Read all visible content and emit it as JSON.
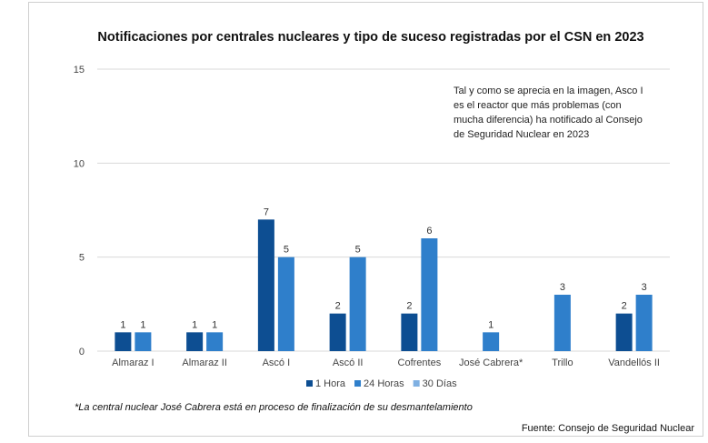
{
  "colors": {
    "1_hora": "#0d4e92",
    "24_horas": "#2f7fcb",
    "30_dias": "#7fb0e2",
    "grid": "#d9d9d9"
  },
  "chart_data": {
    "type": "bar",
    "title": "Notificaciones por centrales nucleares y tipo de suceso registradas por el CSN en 2023",
    "categories": [
      "Almaraz I",
      "Almaraz II",
      "Ascó I",
      "Ascó II",
      "Cofrentes",
      "José Cabrera*",
      "Trillo",
      "Vandellós II"
    ],
    "series": [
      {
        "name": "1 Hora",
        "values": [
          1,
          1,
          7,
          2,
          2,
          0,
          0,
          2
        ]
      },
      {
        "name": "24 Horas",
        "values": [
          1,
          1,
          5,
          5,
          6,
          1,
          3,
          3
        ]
      },
      {
        "name": "30 Días",
        "values": [
          0,
          0,
          0,
          0,
          0,
          0,
          0,
          0
        ]
      }
    ],
    "ylim": [
      0,
      15
    ],
    "yticks": [
      0,
      5,
      10,
      15
    ],
    "grid": true,
    "legend": "bottom",
    "annotation": [
      "Tal y como se aprecia en la imagen, Asco I",
      "es el reactor que más problemas (con",
      "mucha diferencia) ha notificado al Consejo",
      "de Seguridad Nuclear en 2023"
    ],
    "footnote": "*La central nuclear José Cabrera está en proceso de finalización de su desmantelamiento",
    "source": "Fuente: Consejo de Seguridad Nuclear"
  }
}
